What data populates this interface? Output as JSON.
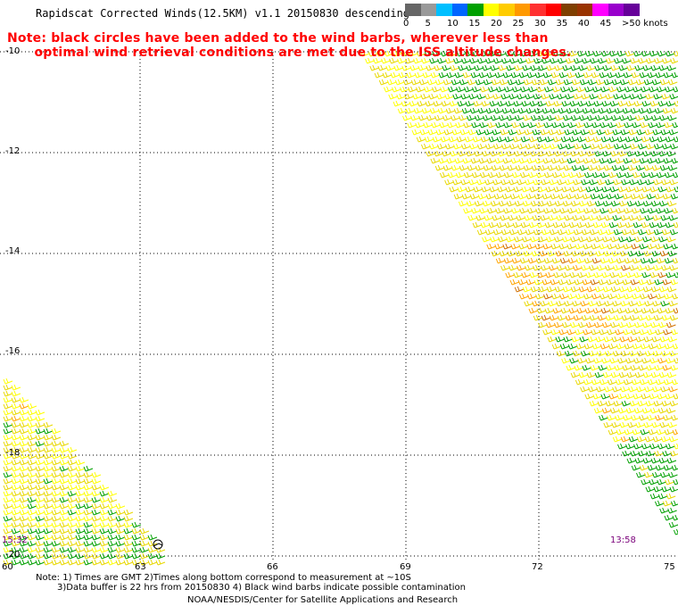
{
  "header": {
    "title": "Rapidscat Corrected Winds(12.5KM) v1.1 20150830 descending",
    "note_line1": "Note: black circles have been added to the wind barbs, wherever less than",
    "note_line2": "      optimal wind retrieval conditions are met due to the ISS altitude changes."
  },
  "colorbar": {
    "unit": "knots",
    "colors": [
      "#666666",
      "#999999",
      "#00bfff",
      "#0066ff",
      "#00a000",
      "#ffff00",
      "#ffcc00",
      "#ff9900",
      "#ff3030",
      "#ff0000",
      "#7f3f00",
      "#993300",
      "#ff00ff",
      "#9900cc",
      "#660099"
    ],
    "labels": [
      "0",
      "5",
      "10",
      "15",
      "20",
      "25",
      "30",
      "35",
      "40",
      "45",
      ">50 knots"
    ]
  },
  "axes": {
    "y_labels": [
      "-10",
      "-12",
      "-14",
      "-16",
      "-18",
      "-20"
    ],
    "x_labels": [
      "60",
      "63",
      "66",
      "69",
      "72",
      "75"
    ]
  },
  "times": {
    "left": "15:32",
    "right": "13:58"
  },
  "footer": {
    "note1": "Note: 1) Times are GMT 2)Times along bottom correspond to measurement at ~10S",
    "note2": "3)Data buffer is 22 hrs from 20150830 4) Black wind barbs indicate possible contamination",
    "credit": "NOAA/NESDIS/Center for Satellite Applications and Research"
  },
  "wind_palette": {
    "light": "#e8d800",
    "yellow": "#ffff00",
    "orange": "#ffa500",
    "dark_orange": "#d07000",
    "green": "#00a000"
  }
}
